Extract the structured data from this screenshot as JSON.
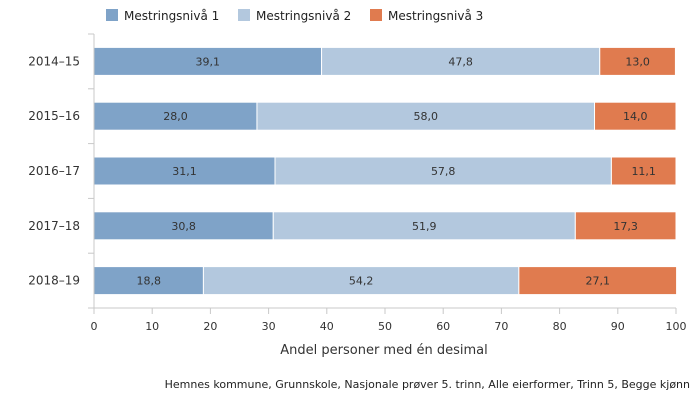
{
  "chart_data": {
    "type": "bar",
    "orientation": "horizontal",
    "stacked": true,
    "categories": [
      "2014–15",
      "2015–16",
      "2016–17",
      "2017–18",
      "2018–19"
    ],
    "series": [
      {
        "name": "Mestringsnivå 1",
        "color": "#7fa3c8",
        "values": [
          39.1,
          28.0,
          31.1,
          30.8,
          18.8
        ],
        "labels": [
          "39,1",
          "28,0",
          "31,1",
          "30,8",
          "18,8"
        ]
      },
      {
        "name": "Mestringsnivå 2",
        "color": "#b3c8de",
        "values": [
          47.8,
          58.0,
          57.8,
          51.9,
          54.2
        ],
        "labels": [
          "47,8",
          "58,0",
          "57,8",
          "51,9",
          "54,2"
        ]
      },
      {
        "name": "Mestringsnivå 3",
        "color": "#e07b4f",
        "values": [
          13.0,
          14.0,
          11.1,
          17.3,
          27.1
        ],
        "labels": [
          "13,0",
          "14,0",
          "11,1",
          "17,3",
          "27,1"
        ]
      }
    ],
    "xlabel": "Andel personer med én desimal",
    "xlim": [
      0,
      100
    ],
    "xticks": [
      0,
      10,
      20,
      30,
      40,
      50,
      60,
      70,
      80,
      90,
      100
    ],
    "grid": false,
    "legend_position": "top",
    "source": "Hemnes kommune, Grunnskole, Nasjonale prøver 5. trinn, Alle eierformer, Trinn 5, Begge kjønn"
  }
}
